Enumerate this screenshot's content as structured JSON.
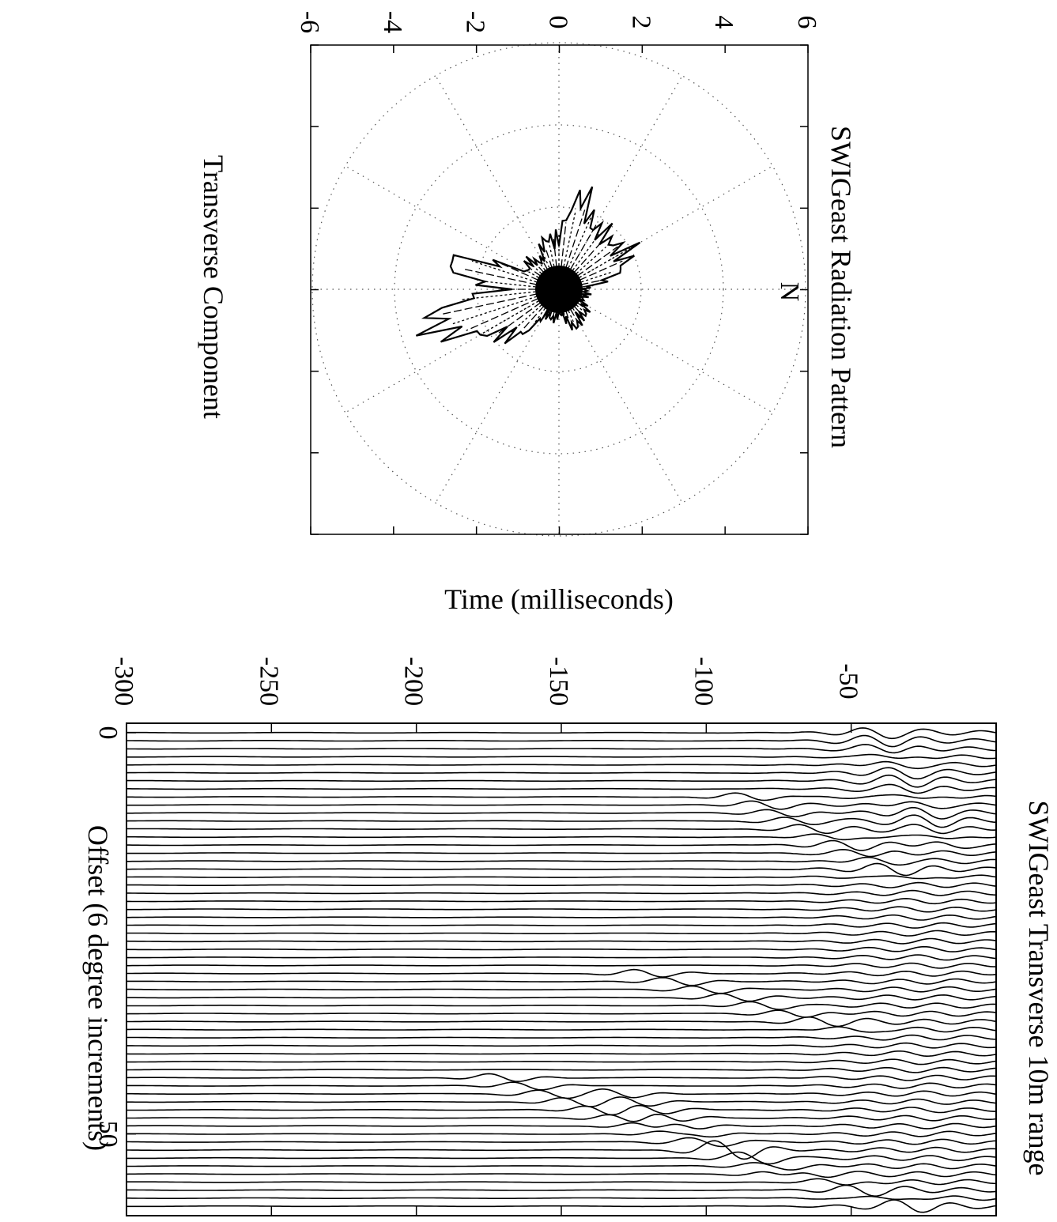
{
  "chart_data": [
    {
      "type": "polar",
      "title": "SWIGeast Radiation Pattern",
      "xlabel": "Transverse Component",
      "north_label": "N",
      "axis_ticks": [
        "-6",
        "-4",
        "-2",
        "0",
        "2",
        "4",
        "6"
      ],
      "ticks_value": [
        -6,
        -4,
        -2,
        0,
        2,
        4,
        6
      ],
      "xlim": [
        -6,
        6
      ],
      "ylim": [
        -6,
        6
      ],
      "grid": true,
      "grid_rings": [
        2,
        4,
        6
      ],
      "grid_spokes_deg": 30,
      "lobes": [
        {
          "azimuth_deg": 0,
          "amplitude": 0.6
        },
        {
          "azimuth_deg": 30,
          "amplitude": 0.7
        },
        {
          "azimuth_deg": 60,
          "amplitude": 1.0
        },
        {
          "azimuth_deg": 90,
          "amplitude": 0.6
        },
        {
          "azimuth_deg": 120,
          "amplitude": 0.8
        },
        {
          "azimuth_deg": 150,
          "amplitude": 2.3
        },
        {
          "azimuth_deg": 160,
          "amplitude": 2.8
        },
        {
          "azimuth_deg": 170,
          "amplitude": 3.2
        },
        {
          "azimuth_deg": 180,
          "amplitude": 1.5
        },
        {
          "azimuth_deg": 195,
          "amplitude": 2.7
        },
        {
          "azimuth_deg": 210,
          "amplitude": 0.9
        },
        {
          "azimuth_deg": 240,
          "amplitude": 0.9
        },
        {
          "azimuth_deg": 270,
          "amplitude": 1.4
        },
        {
          "azimuth_deg": 285,
          "amplitude": 2.2
        },
        {
          "azimuth_deg": 300,
          "amplitude": 1.9
        },
        {
          "azimuth_deg": 315,
          "amplitude": 1.5
        },
        {
          "azimuth_deg": 330,
          "amplitude": 2.1
        },
        {
          "azimuth_deg": 345,
          "amplitude": 1.3
        }
      ]
    },
    {
      "type": "line",
      "title": "SWIGeast Transverse 10m range",
      "xlabel": "Offset (6 degree increments)",
      "ylabel": "Time (milliseconds)",
      "x_ticks": [
        "0",
        "50"
      ],
      "x_ticks_value": [
        0,
        50
      ],
      "y_ticks": [
        "-300",
        "-250",
        "-200",
        "-150",
        "-100",
        "-50"
      ],
      "y_ticks_value": [
        -300,
        -250,
        -200,
        -150,
        -100,
        -50
      ],
      "xlim": [
        0,
        59
      ],
      "ylim": [
        -300,
        0
      ],
      "trace_count": 60,
      "events": [
        {
          "trace_start": 0,
          "time_start": -42,
          "trace_end": 14,
          "time_end": -18
        },
        {
          "trace_start": 8,
          "time_start": -85,
          "trace_end": 18,
          "time_end": -30
        },
        {
          "trace_start": 30,
          "time_start": -120,
          "trace_end": 37,
          "time_end": -50
        },
        {
          "trace_start": 43,
          "time_start": -170,
          "trace_end": 52,
          "time_end": -95
        },
        {
          "trace_start": 45,
          "time_start": -130,
          "trace_end": 55,
          "time_end": -75
        },
        {
          "trace_start": 52,
          "time_start": -90,
          "trace_end": 59,
          "time_end": -30
        }
      ]
    }
  ]
}
